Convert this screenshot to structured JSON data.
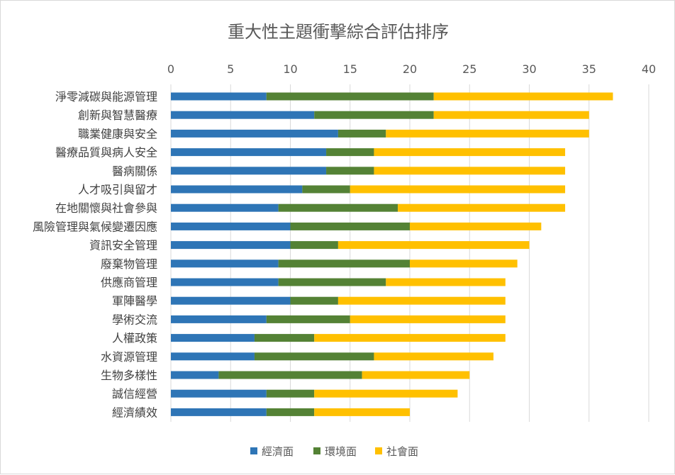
{
  "chart_data": {
    "type": "bar",
    "orientation": "horizontal",
    "stacked": true,
    "title": "重大性主題衝擊綜合評估排序",
    "xlabel": "",
    "ylabel": "",
    "xlim": [
      0,
      40
    ],
    "x_ticks": [
      0,
      5,
      10,
      15,
      20,
      25,
      30,
      35,
      40
    ],
    "x_axis_position": "top",
    "grid": true,
    "legend_position": "bottom",
    "categories": [
      "淨零減碳與能源管理",
      "創新與智慧醫療",
      "職業健康與安全",
      "醫療品質與病人安全",
      "醫病關係",
      "人才吸引與留才",
      "在地關懷與社會參與",
      "風險管理與氣候變遷因應",
      "資訊安全管理",
      "廢棄物管理",
      "供應商管理",
      "軍陣醫學",
      "學術交流",
      "人權政策",
      "水資源管理",
      "生物多樣性",
      "誠信經營",
      "經濟績效"
    ],
    "series": [
      {
        "name": "經濟面",
        "color": "#2e75b6",
        "values": [
          8,
          12,
          14,
          13,
          13,
          11,
          9,
          10,
          10,
          9,
          9,
          10,
          8,
          7,
          7,
          4,
          8,
          8
        ]
      },
      {
        "name": "環境面",
        "color": "#548235",
        "values": [
          14,
          10,
          4,
          4,
          4,
          4,
          10,
          10,
          4,
          11,
          9,
          4,
          7,
          5,
          10,
          12,
          4,
          4
        ]
      },
      {
        "name": "社會面",
        "color": "#ffc000",
        "values": [
          15,
          13,
          17,
          16,
          16,
          18,
          14,
          11,
          16,
          9,
          10,
          14,
          13,
          16,
          10,
          9,
          12,
          8
        ]
      }
    ]
  }
}
